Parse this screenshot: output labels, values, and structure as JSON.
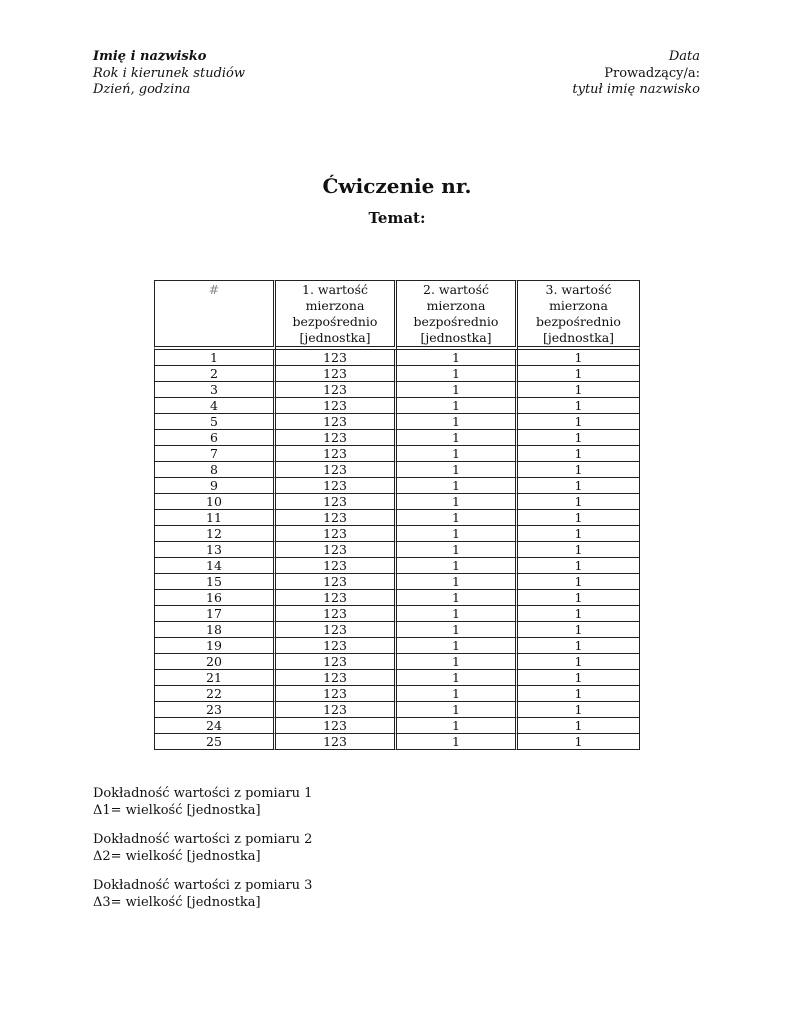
{
  "header_left": {
    "name": "Imię i nazwisko",
    "study": "Rok i kierunek studiów",
    "day": "Dzień, godzina"
  },
  "header_right": {
    "date": "Data",
    "instructor_label": "Prowadzący/a:",
    "instructor": "tytuł imię nazwisko"
  },
  "title": "Ćwiczenie nr.",
  "subtitle": "Temat:",
  "table": {
    "headers": [
      [
        "#"
      ],
      [
        "1. wartość",
        "mierzona",
        "bezpośrednio",
        "[jednostka]"
      ],
      [
        "2. wartość",
        "mierzona",
        "bezpośrednio",
        "[jednostka]"
      ],
      [
        "3. wartość",
        "mierzona",
        "bezpośrednio",
        "[jednostka]"
      ]
    ],
    "rows": [
      [
        "1",
        "123",
        "1",
        "1"
      ],
      [
        "2",
        "123",
        "1",
        "1"
      ],
      [
        "3",
        "123",
        "1",
        "1"
      ],
      [
        "4",
        "123",
        "1",
        "1"
      ],
      [
        "5",
        "123",
        "1",
        "1"
      ],
      [
        "6",
        "123",
        "1",
        "1"
      ],
      [
        "7",
        "123",
        "1",
        "1"
      ],
      [
        "8",
        "123",
        "1",
        "1"
      ],
      [
        "9",
        "123",
        "1",
        "1"
      ],
      [
        "10",
        "123",
        "1",
        "1"
      ],
      [
        "11",
        "123",
        "1",
        "1"
      ],
      [
        "12",
        "123",
        "1",
        "1"
      ],
      [
        "13",
        "123",
        "1",
        "1"
      ],
      [
        "14",
        "123",
        "1",
        "1"
      ],
      [
        "15",
        "123",
        "1",
        "1"
      ],
      [
        "16",
        "123",
        "1",
        "1"
      ],
      [
        "17",
        "123",
        "1",
        "1"
      ],
      [
        "18",
        "123",
        "1",
        "1"
      ],
      [
        "19",
        "123",
        "1",
        "1"
      ],
      [
        "20",
        "123",
        "1",
        "1"
      ],
      [
        "21",
        "123",
        "1",
        "1"
      ],
      [
        "22",
        "123",
        "1",
        "1"
      ],
      [
        "23",
        "123",
        "1",
        "1"
      ],
      [
        "24",
        "123",
        "1",
        "1"
      ],
      [
        "25",
        "123",
        "1",
        "1"
      ]
    ]
  },
  "notes": [
    {
      "label": "Dokładność wartości z pomiaru 1",
      "value": "Δ1= wielkość [jednostka]"
    },
    {
      "label": "Dokładność wartości z pomiaru 2",
      "value": "Δ2= wielkość [jednostka]"
    },
    {
      "label": "Dokładność wartości z pomiaru 3",
      "value": "Δ3= wielkość [jednostka]"
    }
  ]
}
